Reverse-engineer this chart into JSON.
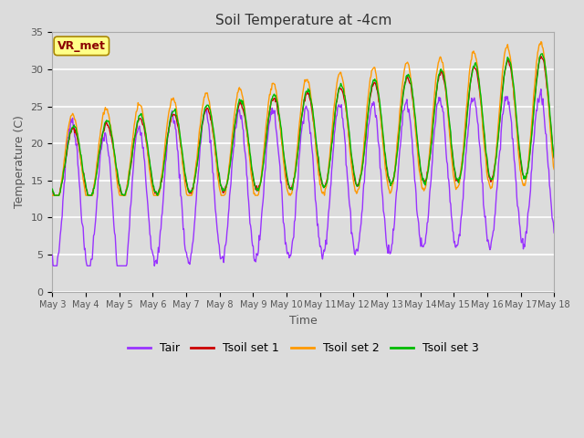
{
  "title": "Soil Temperature at -4cm",
  "xlabel": "Time",
  "ylabel": "Temperature (C)",
  "ylim": [
    0,
    35
  ],
  "background_color": "#dcdcdc",
  "plot_bg_color": "#dcdcdc",
  "grid_color": "white",
  "xtick_labels": [
    "May 3",
    "May 4",
    "May 5",
    "May 6",
    "May 7",
    "May 8",
    "May 9",
    "May 10",
    "May 11",
    "May 12",
    "May 13",
    "May 14",
    "May 15",
    "May 16",
    "May 17",
    "May 18"
  ],
  "annotation_text": "VR_met",
  "annotation_color": "#8b0000",
  "annotation_bg": "#ffff88",
  "line_colors": {
    "Tair": "#9933ff",
    "Tsoil1": "#cc0000",
    "Tsoil2": "#ff9900",
    "Tsoil3": "#00bb00"
  },
  "legend_labels": [
    "Tair",
    "Tsoil set 1",
    "Tsoil set 2",
    "Tsoil set 3"
  ],
  "ytick_values": [
    0,
    5,
    10,
    15,
    20,
    25,
    30,
    35
  ],
  "tair_base": 13.0,
  "tair_trend": 0.25,
  "tair_amp_base": 10.0,
  "tair_amp_trend": 0.0,
  "tsoil_base": 17.0,
  "tsoil_trend": 0.45,
  "tsoil_amp_base": 4.5,
  "tsoil_amp_trend": 0.25
}
